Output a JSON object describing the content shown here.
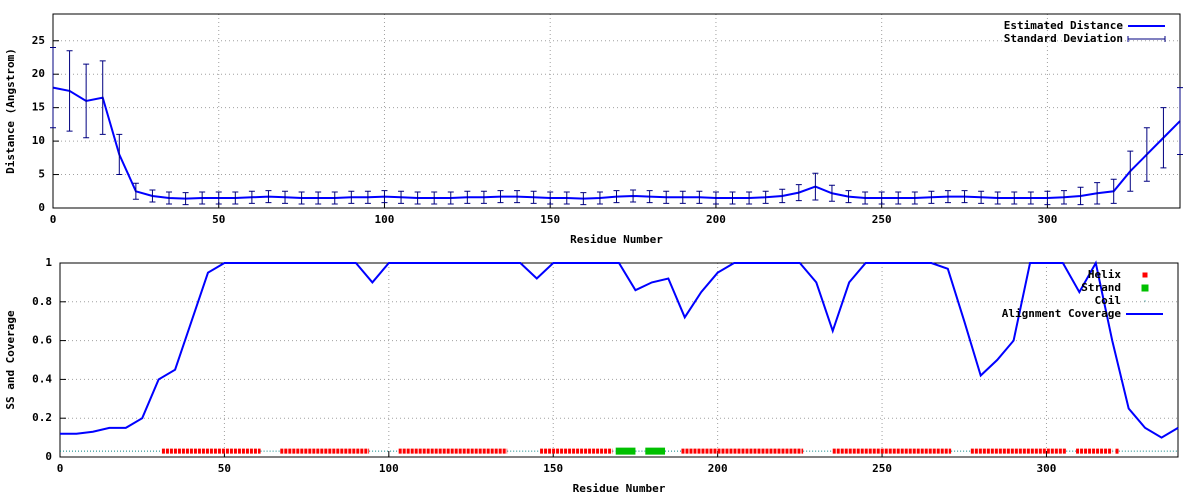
{
  "chart_data": [
    {
      "type": "line",
      "xlabel": "Residue Number",
      "ylabel": "Distance (Angstrom)",
      "xlim": [
        0,
        340
      ],
      "ylim": [
        0,
        29
      ],
      "xticks": [
        0,
        50,
        100,
        150,
        200,
        250,
        300
      ],
      "yticks": [
        0,
        5,
        10,
        15,
        20,
        25
      ],
      "grid": true,
      "legend": "top-right",
      "x": [
        0,
        5,
        10,
        15,
        20,
        25,
        30,
        35,
        40,
        45,
        50,
        55,
        60,
        65,
        70,
        75,
        80,
        85,
        90,
        95,
        100,
        105,
        110,
        115,
        120,
        125,
        130,
        135,
        140,
        145,
        150,
        155,
        160,
        165,
        170,
        175,
        180,
        185,
        190,
        195,
        200,
        205,
        210,
        215,
        220,
        225,
        230,
        235,
        240,
        245,
        250,
        255,
        260,
        265,
        270,
        275,
        280,
        285,
        290,
        295,
        300,
        305,
        310,
        315,
        320,
        325,
        330,
        335,
        340
      ],
      "series": [
        {
          "name": "Estimated Distance",
          "kind": "line",
          "color": "#0000ff",
          "values": [
            18,
            17.5,
            16,
            16.5,
            8,
            2.5,
            1.8,
            1.5,
            1.4,
            1.5,
            1.5,
            1.5,
            1.6,
            1.7,
            1.6,
            1.5,
            1.5,
            1.5,
            1.6,
            1.6,
            1.7,
            1.6,
            1.5,
            1.5,
            1.5,
            1.6,
            1.6,
            1.7,
            1.7,
            1.6,
            1.5,
            1.5,
            1.4,
            1.5,
            1.7,
            1.8,
            1.7,
            1.6,
            1.6,
            1.6,
            1.5,
            1.5,
            1.5,
            1.6,
            1.8,
            2.3,
            3.2,
            2.2,
            1.7,
            1.5,
            1.5,
            1.5,
            1.5,
            1.6,
            1.7,
            1.7,
            1.6,
            1.5,
            1.5,
            1.5,
            1.5,
            1.6,
            1.8,
            2.2,
            2.5,
            5.5,
            8,
            10.5,
            13
          ]
        },
        {
          "name": "Standard Deviation",
          "kind": "errorbars",
          "color": "#000080",
          "values": [
            18,
            17.5,
            16,
            16.5,
            8,
            2.5,
            1.8,
            1.5,
            1.4,
            1.5,
            1.5,
            1.5,
            1.6,
            1.7,
            1.6,
            1.5,
            1.5,
            1.5,
            1.6,
            1.6,
            1.7,
            1.6,
            1.5,
            1.5,
            1.5,
            1.6,
            1.6,
            1.7,
            1.7,
            1.6,
            1.5,
            1.5,
            1.4,
            1.5,
            1.7,
            1.8,
            1.7,
            1.6,
            1.6,
            1.6,
            1.5,
            1.5,
            1.5,
            1.6,
            1.8,
            2.3,
            3.2,
            2.2,
            1.7,
            1.5,
            1.5,
            1.5,
            1.5,
            1.6,
            1.7,
            1.7,
            1.6,
            1.5,
            1.5,
            1.5,
            1.5,
            1.6,
            1.8,
            2.2,
            2.5,
            5.5,
            8,
            10.5,
            13
          ],
          "errors": [
            6,
            6,
            5.5,
            5.5,
            3,
            1.2,
            0.9,
            0.9,
            0.9,
            0.9,
            0.9,
            0.9,
            0.9,
            0.9,
            0.9,
            0.9,
            0.9,
            0.9,
            0.9,
            0.9,
            0.9,
            0.9,
            0.9,
            0.9,
            0.9,
            0.9,
            0.9,
            0.9,
            0.9,
            0.9,
            0.9,
            0.9,
            0.9,
            0.9,
            0.9,
            0.9,
            0.9,
            0.9,
            0.9,
            0.9,
            0.9,
            0.9,
            0.9,
            0.9,
            1,
            1.2,
            2,
            1.2,
            0.9,
            0.9,
            0.9,
            0.9,
            0.9,
            0.9,
            0.9,
            0.9,
            0.9,
            0.9,
            0.9,
            0.9,
            1,
            1,
            1.3,
            1.6,
            1.8,
            3,
            4,
            4.5,
            5
          ]
        }
      ]
    },
    {
      "type": "line",
      "xlabel": "Residue Number",
      "ylabel": "SS and Coverage",
      "xlim": [
        0,
        340
      ],
      "ylim": [
        0,
        1
      ],
      "xticks": [
        0,
        50,
        100,
        150,
        200,
        250,
        300
      ],
      "yticks": [
        0,
        0.2,
        0.4,
        0.6,
        0.8,
        1
      ],
      "grid": true,
      "legend": "top-right",
      "x": [
        0,
        5,
        10,
        15,
        20,
        25,
        30,
        35,
        40,
        45,
        50,
        55,
        60,
        65,
        70,
        75,
        80,
        85,
        90,
        95,
        100,
        105,
        110,
        115,
        120,
        125,
        130,
        135,
        140,
        145,
        150,
        155,
        160,
        165,
        170,
        175,
        180,
        185,
        190,
        195,
        200,
        205,
        210,
        215,
        220,
        225,
        230,
        235,
        240,
        245,
        250,
        255,
        260,
        265,
        270,
        275,
        280,
        285,
        290,
        295,
        300,
        305,
        310,
        315,
        320,
        325,
        330,
        335,
        340
      ],
      "series": [
        {
          "name": "Helix",
          "kind": "ranges",
          "marker": "plus",
          "color": "#ff0000",
          "y": 0.03,
          "ranges": [
            [
              31,
              61
            ],
            [
              67,
              94
            ],
            [
              103,
              136
            ],
            [
              146,
              168
            ],
            [
              189,
              226
            ],
            [
              235,
              271
            ],
            [
              277,
              306
            ],
            [
              309,
              320
            ],
            [
              321,
              322
            ]
          ]
        },
        {
          "name": "Strand",
          "kind": "ranges",
          "marker": "square",
          "color": "#00c000",
          "y": 0.03,
          "ranges": [
            [
              169,
              175
            ],
            [
              178,
              184
            ]
          ]
        },
        {
          "name": "Coil",
          "kind": "ranges",
          "marker": "dot",
          "color": "#008080",
          "y": 0.03,
          "ranges": [
            [
              0,
              31
            ],
            [
              61,
              67
            ],
            [
              94,
              103
            ],
            [
              136,
              146
            ],
            [
              168,
              169
            ],
            [
              175,
              178
            ],
            [
              184,
              189
            ],
            [
              226,
              235
            ],
            [
              271,
              277
            ],
            [
              306,
              309
            ],
            [
              320,
              321
            ],
            [
              322,
              340
            ]
          ]
        },
        {
          "name": "Alignment Coverage",
          "kind": "line",
          "color": "#0000ff",
          "values": [
            0.12,
            0.12,
            0.13,
            0.15,
            0.15,
            0.2,
            0.4,
            0.45,
            0.7,
            0.95,
            1,
            1,
            1,
            1,
            1,
            1,
            1,
            1,
            1,
            0.9,
            1,
            1,
            1,
            1,
            1,
            1,
            1,
            1,
            1,
            0.92,
            1,
            1,
            1,
            1,
            1,
            0.86,
            0.9,
            0.92,
            0.72,
            0.85,
            0.95,
            1,
            1,
            1,
            1,
            1,
            0.9,
            0.65,
            0.9,
            1,
            1,
            1,
            1,
            1,
            0.97,
            0.7,
            0.42,
            0.5,
            0.6,
            1,
            1,
            1,
            0.85,
            1,
            0.6,
            0.25,
            0.15,
            0.1,
            0.15
          ]
        }
      ]
    }
  ]
}
